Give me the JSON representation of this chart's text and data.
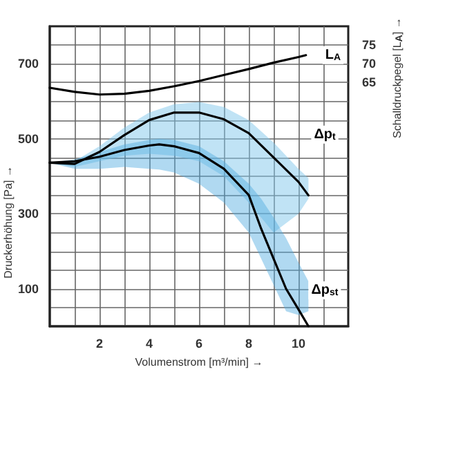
{
  "chart_data": {
    "type": "line",
    "xlabel": "Volumenstrom [m³/min] →",
    "ylabel": "Druckerhöhung [Pa] →",
    "y2label": "Schalldruckpegel [L$_{A}$] →",
    "xlim": [
      0,
      12
    ],
    "xticks": [
      {
        "value": 1,
        "label": null
      },
      2,
      {
        "value": 3,
        "label": null
      },
      4,
      {
        "value": 5,
        "label": null
      },
      6,
      {
        "value": 7,
        "label": null
      },
      8,
      {
        "value": 9,
        "label": null
      },
      10,
      {
        "value": 11,
        "label": null
      }
    ],
    "ylim": [
      0,
      800
    ],
    "yticks": [
      {
        "value": 50,
        "label": null
      },
      100,
      {
        "value": 150,
        "label": null
      },
      {
        "value": 200,
        "label": null
      },
      {
        "value": 250,
        "label": null
      },
      300,
      {
        "value": 350,
        "label": null
      },
      {
        "value": 400,
        "label": null
      },
      {
        "value": 450,
        "label": null
      },
      500,
      {
        "value": 550,
        "label": null
      },
      {
        "value": 600,
        "label": null
      },
      {
        "value": 650,
        "label": null
      },
      700,
      {
        "value": 750,
        "label": null
      }
    ],
    "y2lim": [
      0,
      80
    ],
    "y2ticks": [
      65,
      70,
      75
    ],
    "grid": true,
    "legend": false,
    "series": [
      {
        "name": "L$_{A}$",
        "color": "#000000",
        "axis": "y2",
        "x": [
          0,
          1,
          2,
          3,
          4,
          5,
          6,
          7,
          8,
          9,
          10,
          10.3
        ],
        "values": [
          63.6,
          62.5,
          61.8,
          62.0,
          62.8,
          64.0,
          65.4,
          67.0,
          68.6,
          70.3,
          71.8,
          72.3
        ]
      },
      {
        "name": "Δp$_{t}$",
        "color": "#000000",
        "x": [
          0,
          1,
          2,
          3,
          4,
          5,
          6,
          7,
          8,
          9,
          10,
          10.4
        ],
        "values": [
          436,
          433,
          465,
          510,
          550,
          570,
          570,
          552,
          515,
          450,
          385,
          349
        ],
        "upper": [
          436,
          440,
          480,
          530,
          570,
          592,
          598,
          585,
          550,
          490,
          420,
          395
        ],
        "lower": [
          436,
          425,
          440,
          455,
          460,
          455,
          440,
          400,
          330,
          250,
          300,
          340
        ]
      },
      {
        "name": "Δp$_{st}$",
        "color": "#000000",
        "x": [
          0,
          1,
          2,
          3,
          4,
          4.4,
          5,
          6,
          7,
          8,
          8.5,
          9,
          9.5,
          10,
          10.4
        ],
        "values": [
          436,
          440,
          452,
          470,
          482,
          485,
          480,
          462,
          420,
          350,
          260,
          180,
          100,
          45,
          0
        ],
        "upper": [
          436,
          445,
          465,
          485,
          497,
          500,
          497,
          480,
          440,
          380,
          340,
          290,
          235,
          170,
          120
        ],
        "lower": [
          436,
          420,
          420,
          425,
          420,
          418,
          410,
          380,
          330,
          250,
          180,
          110,
          40,
          30,
          40
        ]
      }
    ]
  }
}
